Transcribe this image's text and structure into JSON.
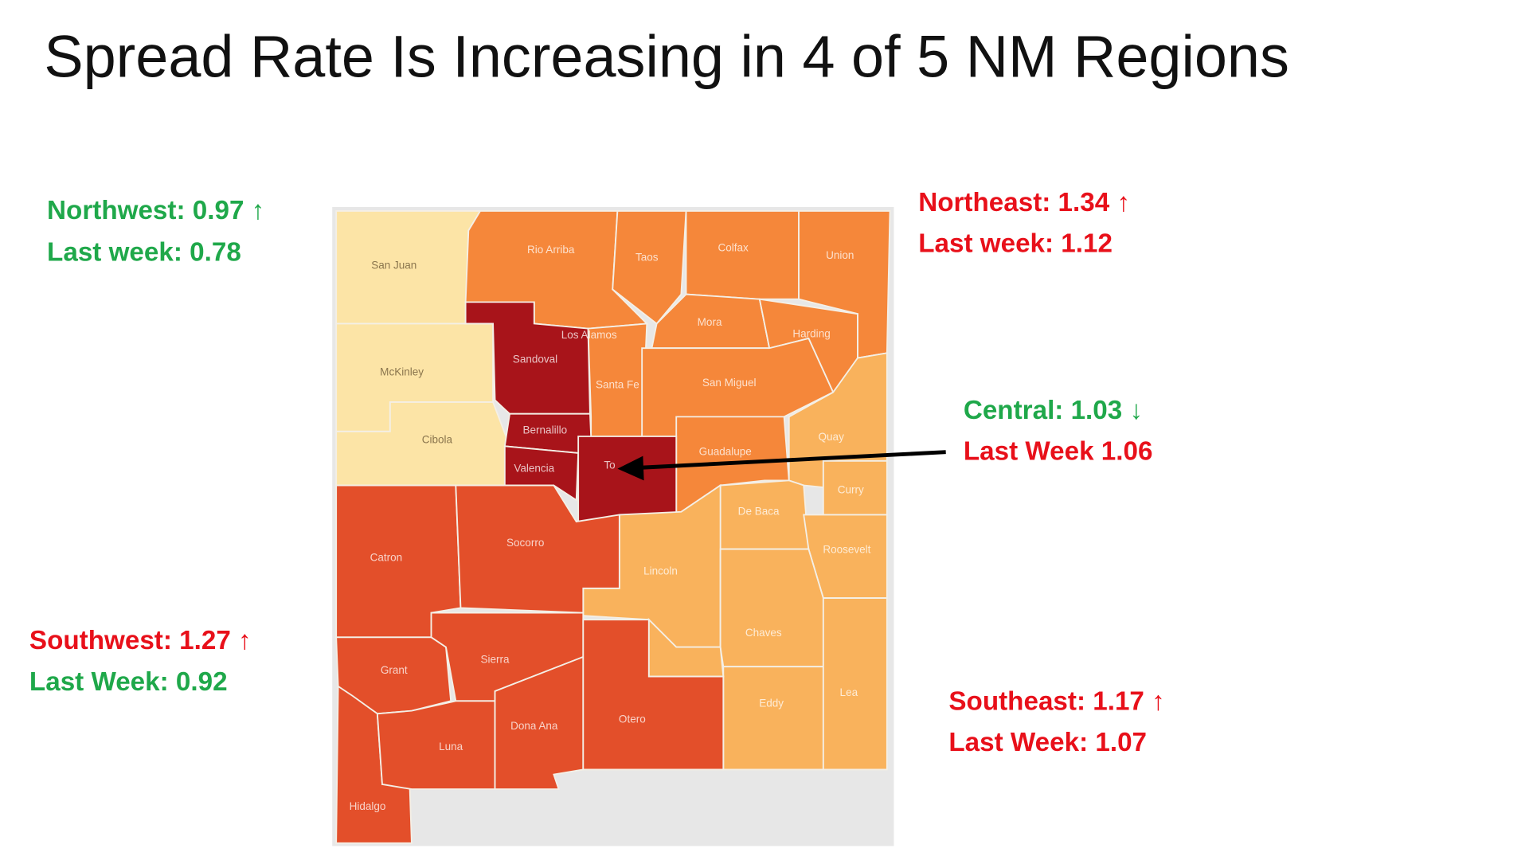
{
  "title": "Spread Rate Is Increasing in 4 of 5 NM Regions",
  "regions": [
    {
      "rate": "Northwest: 0.97 ↑",
      "last_week": "Last week: 0.78"
    },
    {
      "rate": "Northeast: 1.34 ↑",
      "last_week": "Last week: 1.12"
    },
    {
      "rate": "Central: 1.03 ↓",
      "last_week": "Last Week 1.06"
    },
    {
      "rate": "Southwest: 1.27 ↑",
      "last_week": "Last Week: 0.92"
    },
    {
      "rate": "Southeast: 1.17 ↑",
      "last_week": "Last Week: 1.07"
    }
  ],
  "counties": [
    "San Juan",
    "Rio Arriba",
    "Taos",
    "Colfax",
    "Union",
    "Mora",
    "Harding",
    "Los Alamos",
    "Sandoval",
    "McKinley",
    "Santa Fe",
    "San Miguel",
    "Cibola",
    "Bernalillo",
    "Quay",
    "Guadalupe",
    "Valencia",
    "To",
    "Curry",
    "De Baca",
    "Roosevelt",
    "Catron",
    "Socorro",
    "Lincoln",
    "Chaves",
    "Grant",
    "Sierra",
    "Hidalgo",
    "Luna",
    "Dona Ana",
    "Otero",
    "Eddy",
    "Lea"
  ]
}
